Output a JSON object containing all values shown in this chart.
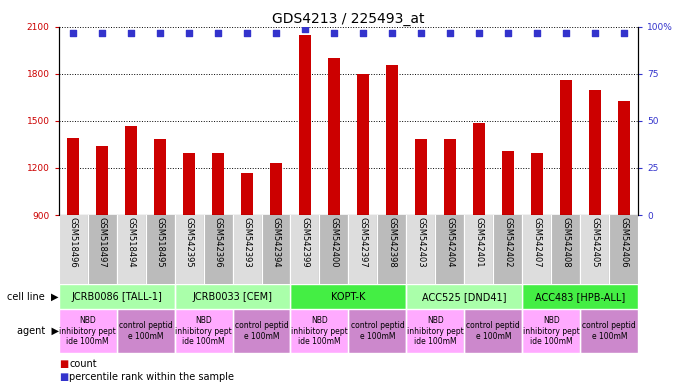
{
  "title": "GDS4213 / 225493_at",
  "samples": [
    "GSM518496",
    "GSM518497",
    "GSM518494",
    "GSM518495",
    "GSM542395",
    "GSM542396",
    "GSM542393",
    "GSM542394",
    "GSM542399",
    "GSM542400",
    "GSM542397",
    "GSM542398",
    "GSM542403",
    "GSM542404",
    "GSM542401",
    "GSM542402",
    "GSM542407",
    "GSM542408",
    "GSM542405",
    "GSM542406"
  ],
  "counts": [
    1390,
    1340,
    1465,
    1385,
    1295,
    1295,
    1170,
    1230,
    2050,
    1900,
    1800,
    1855,
    1385,
    1385,
    1490,
    1310,
    1295,
    1760,
    1700,
    1630
  ],
  "percentile": [
    97,
    97,
    97,
    97,
    97,
    97,
    97,
    97,
    99,
    97,
    97,
    97,
    97,
    97,
    97,
    97,
    97,
    97,
    97,
    97
  ],
  "ylim_left": [
    900,
    2100
  ],
  "ylim_right": [
    0,
    100
  ],
  "yticks_left": [
    900,
    1200,
    1500,
    1800,
    2100
  ],
  "yticks_right": [
    0,
    25,
    50,
    75,
    100
  ],
  "bar_color": "#cc0000",
  "dot_color": "#3333cc",
  "dot_size": 18,
  "cell_lines": [
    {
      "label": "JCRB0086 [TALL-1]",
      "start": 0,
      "end": 4,
      "color": "#aaffaa"
    },
    {
      "label": "JCRB0033 [CEM]",
      "start": 4,
      "end": 8,
      "color": "#aaffaa"
    },
    {
      "label": "KOPT-K",
      "start": 8,
      "end": 12,
      "color": "#44ee44"
    },
    {
      "label": "ACC525 [DND41]",
      "start": 12,
      "end": 16,
      "color": "#aaffaa"
    },
    {
      "label": "ACC483 [HPB-ALL]",
      "start": 16,
      "end": 20,
      "color": "#44ee44"
    }
  ],
  "agents": [
    {
      "label": "NBD\ninhibitory pept\nide 100mM",
      "start": 0,
      "end": 2,
      "color": "#ffaaff"
    },
    {
      "label": "control peptid\ne 100mM",
      "start": 2,
      "end": 4,
      "color": "#cc88cc"
    },
    {
      "label": "NBD\ninhibitory pept\nide 100mM",
      "start": 4,
      "end": 6,
      "color": "#ffaaff"
    },
    {
      "label": "control peptid\ne 100mM",
      "start": 6,
      "end": 8,
      "color": "#cc88cc"
    },
    {
      "label": "NBD\ninhibitory pept\nide 100mM",
      "start": 8,
      "end": 10,
      "color": "#ffaaff"
    },
    {
      "label": "control peptid\ne 100mM",
      "start": 10,
      "end": 12,
      "color": "#cc88cc"
    },
    {
      "label": "NBD\ninhibitory pept\nide 100mM",
      "start": 12,
      "end": 14,
      "color": "#ffaaff"
    },
    {
      "label": "control peptid\ne 100mM",
      "start": 14,
      "end": 16,
      "color": "#cc88cc"
    },
    {
      "label": "NBD\ninhibitory pept\nide 100mM",
      "start": 16,
      "end": 18,
      "color": "#ffaaff"
    },
    {
      "label": "control peptid\ne 100mM",
      "start": 18,
      "end": 20,
      "color": "#cc88cc"
    }
  ],
  "bar_width": 0.4,
  "grid_color": "black",
  "grid_linestyle": ":",
  "grid_linewidth": 0.7,
  "title_fontsize": 10,
  "tick_fontsize": 6.5,
  "sample_fontsize": 6,
  "label_fontsize": 7,
  "cell_line_fontsize": 7,
  "agent_fontsize": 5.5,
  "sample_bg_even": "#dddddd",
  "sample_bg_odd": "#bbbbbb"
}
